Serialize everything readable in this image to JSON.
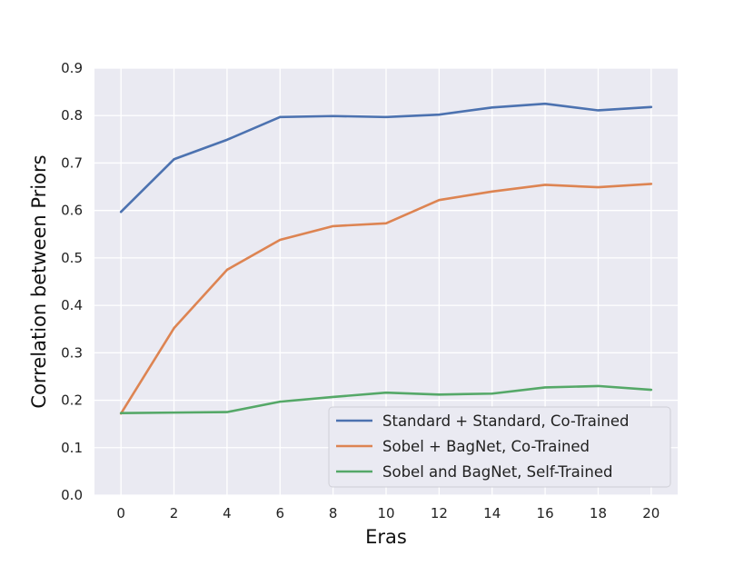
{
  "chart_data": {
    "type": "line",
    "xlabel": "Eras",
    "ylabel": "Correlation between Priors",
    "xlim": [
      -1,
      21
    ],
    "ylim": [
      0,
      0.9
    ],
    "x_ticks": [
      0,
      2,
      4,
      6,
      8,
      10,
      12,
      14,
      16,
      18,
      20
    ],
    "y_ticks": [
      "0.0",
      "0.1",
      "0.2",
      "0.3",
      "0.4",
      "0.5",
      "0.6",
      "0.7",
      "0.8",
      "0.9"
    ],
    "grid": true,
    "legend_position": "lower-right",
    "x": [
      0,
      2,
      4,
      6,
      8,
      10,
      12,
      14,
      16,
      18,
      20
    ],
    "series": [
      {
        "name": "Standard + Standard, Co-Trained",
        "color": "#4c72b0",
        "values": [
          0.597,
          0.708,
          0.749,
          0.797,
          0.799,
          0.797,
          0.802,
          0.817,
          0.825,
          0.811,
          0.818
        ]
      },
      {
        "name": "Sobel + BagNet, Co-Trained",
        "color": "#dd8452",
        "values": [
          0.172,
          0.352,
          0.475,
          0.538,
          0.567,
          0.573,
          0.622,
          0.64,
          0.654,
          0.649,
          0.656
        ]
      },
      {
        "name": "Sobel and BagNet, Self-Trained",
        "color": "#55a868",
        "values": [
          0.173,
          0.174,
          0.175,
          0.197,
          0.207,
          0.216,
          0.212,
          0.214,
          0.227,
          0.23,
          0.222
        ]
      }
    ]
  }
}
